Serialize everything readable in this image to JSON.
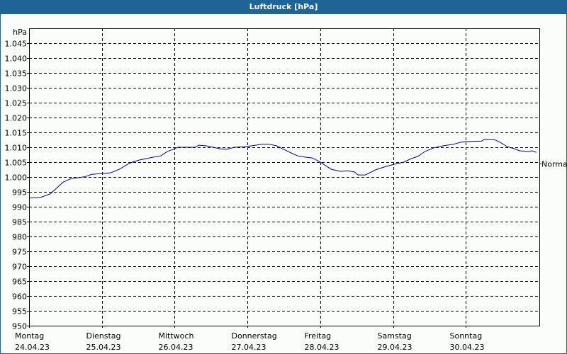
{
  "window": {
    "title": "Luftdruck [hPa]"
  },
  "chart_data": {
    "type": "line",
    "title": "Luftdruck [hPa]",
    "ylabel": "hPa",
    "xlabel": "",
    "ylim": [
      950,
      1050
    ],
    "yticks": [
      950,
      955,
      960,
      965,
      970,
      975,
      980,
      985,
      990,
      995,
      1000,
      1005,
      1010,
      1015,
      1020,
      1025,
      1030,
      1035,
      1040,
      1045
    ],
    "ytick_labels": [
      "950",
      "955",
      "960",
      "965",
      "970",
      "975",
      "980",
      "985",
      "990",
      "995",
      "1.000",
      "1.005",
      "1.010",
      "1.015",
      "1.020",
      "1.025",
      "1.030",
      "1.035",
      "1.040",
      "1.045"
    ],
    "categories": [
      {
        "day": "Montag",
        "date": "24.04.23"
      },
      {
        "day": "Dienstag",
        "date": "25.04.23"
      },
      {
        "day": "Mittwoch",
        "date": "26.04.23"
      },
      {
        "day": "Donnerstag",
        "date": "27.04.23"
      },
      {
        "day": "Freitag",
        "date": "28.04.23"
      },
      {
        "day": "Samstag",
        "date": "29.04.23"
      },
      {
        "day": "Sonntag",
        "date": "30.04.23"
      }
    ],
    "grid": true,
    "annotation": {
      "label": "Normal",
      "value": 1004.5
    },
    "series": [
      {
        "name": "Luftdruck",
        "color": "#0000b0",
        "x_days": [
          0,
          0.15,
          0.21,
          0.29,
          0.47,
          0.58,
          0.7,
          0.78,
          0.86,
          1.01,
          1.12,
          1.24,
          1.37,
          1.42,
          1.51,
          1.71,
          1.81,
          1.9,
          2.0,
          2.04,
          2.14,
          2.28,
          2.33,
          2.43,
          2.53,
          2.62,
          2.72,
          2.82,
          2.96,
          3.06,
          3.2,
          3.3,
          3.4,
          3.5,
          3.6,
          3.69,
          3.79,
          3.89,
          3.99,
          4.09,
          4.15,
          4.28,
          4.38,
          4.47,
          4.52,
          4.62,
          4.76,
          4.91,
          5.05,
          5.15,
          5.25,
          5.34,
          5.44,
          5.56,
          5.69,
          5.83,
          5.93,
          6.0,
          6.22,
          6.25,
          6.39,
          6.47,
          6.57,
          6.67,
          6.74,
          6.86,
          6.91,
          6.97
        ],
        "values": [
          992.9,
          993.1,
          993.6,
          994.3,
          998.3,
          999.5,
          999.8,
          1000.2,
          1000.9,
          1001.2,
          1001.4,
          1002.6,
          1004.5,
          1005.0,
          1005.7,
          1006.7,
          1007.1,
          1008.6,
          1009.5,
          1010.0,
          1010.0,
          1010.0,
          1010.7,
          1010.5,
          1010.0,
          1009.5,
          1009.3,
          1010.0,
          1010.2,
          1010.5,
          1011.0,
          1011.0,
          1010.5,
          1009.3,
          1008.1,
          1007.1,
          1006.7,
          1006.4,
          1005.2,
          1003.6,
          1002.6,
          1001.9,
          1002.1,
          1001.7,
          1000.7,
          1000.7,
          1002.4,
          1003.6,
          1004.5,
          1005.0,
          1006.2,
          1006.9,
          1008.6,
          1009.8,
          1010.5,
          1011.0,
          1011.7,
          1011.9,
          1012.1,
          1012.6,
          1012.6,
          1011.7,
          1010.2,
          1009.5,
          1008.8,
          1008.6,
          1008.8,
          1008.3
        ]
      }
    ]
  }
}
